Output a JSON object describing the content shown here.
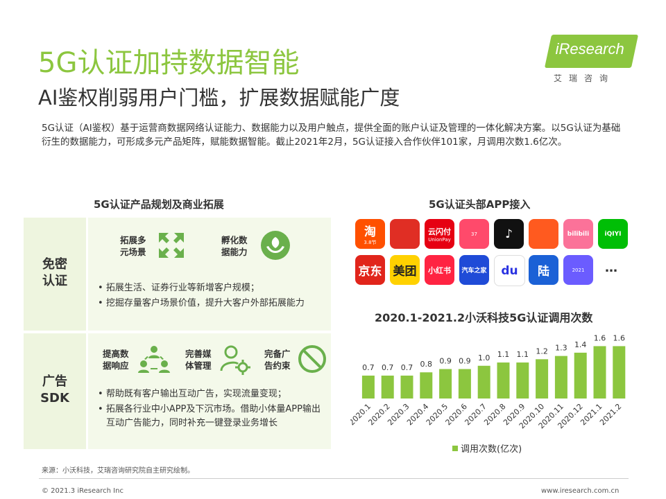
{
  "title": "5G认证加持数据智能",
  "subtitle": "AI鉴权削弱用户门槛，扩展数据赋能广度",
  "logo": {
    "brand": "iResearch",
    "cn": "艾瑞咨询"
  },
  "description": "5G认证（AI鉴权）基于运营商数据网络认证能力、数据能力以及用户触点，提供全面的账户认证及管理的一体化解决方案。以5G认证为基础衍生的数据能力，可形成多元产品矩阵，赋能数据智能。截止2021年2月，5G认证接入合作伙伴101家，月调用次数1.6亿次。",
  "left_section": {
    "title": "5G认证产品规划及商业拓展",
    "rows": [
      {
        "label": "免密\n认证",
        "features": [
          {
            "text": "拓展多\n元场景",
            "icon": "expand-arrows-icon"
          },
          {
            "text": "孵化数\n据能力",
            "icon": "sprout-hand-icon"
          }
        ],
        "bullets": [
          "拓展生活、证券行业等新增客户规模；",
          "挖掘存量客户场景价值，提升大客户外部拓展能力"
        ]
      },
      {
        "label": "广告\nSDK",
        "features": [
          {
            "text": "提高数\n据响应",
            "icon": "team-network-icon"
          },
          {
            "text": "完善媒\n体管理",
            "icon": "user-gear-icon"
          },
          {
            "text": "完备广\n告约束",
            "icon": "prohibit-icon"
          }
        ],
        "bullets": [
          "帮助既有客户输出互动广告，实现流量变现；",
          "拓展各行业中小APP及下沉市场。借助小体量APP输出互动广告能力，同时补充一键登录业务增长"
        ]
      }
    ]
  },
  "right_section": {
    "title": "5G认证头部APP接入",
    "apps": [
      {
        "name": "taobao-app-icon",
        "label": "淘",
        "sub": "3.8节",
        "bg": "#ff5000",
        "fg": "#ffffff"
      },
      {
        "name": "pinduoduo-app-icon",
        "label": "",
        "sub": "",
        "bg": "#e02e24",
        "fg": "#ffffff"
      },
      {
        "name": "yunshanfu-app-icon",
        "label": "云闪付",
        "sub": "UnionPay",
        "bg": "#e60012",
        "fg": "#ffffff"
      },
      {
        "name": "mushroom-app-icon",
        "label": "",
        "sub": "37",
        "bg": "#ff4a6b",
        "fg": "#ffffff"
      },
      {
        "name": "douyin-app-icon",
        "label": "♪",
        "sub": "",
        "bg": "#111111",
        "fg": "#ffffff"
      },
      {
        "name": "kuaishou-app-icon",
        "label": "",
        "sub": "",
        "bg": "#ff5a1f",
        "fg": "#ffffff"
      },
      {
        "name": "bilibili-app-icon",
        "label": "bilibili",
        "sub": "",
        "bg": "#fb7299",
        "fg": "#ffffff"
      },
      {
        "name": "iqiyi-app-icon",
        "label": "iQIYI",
        "sub": "",
        "bg": "#00be06",
        "fg": "#ffffff"
      },
      {
        "name": "jd-app-icon",
        "label": "京东",
        "sub": "",
        "bg": "#e1251b",
        "fg": "#ffffff"
      },
      {
        "name": "meituan-app-icon",
        "label": "美团",
        "sub": "",
        "bg": "#ffd100",
        "fg": "#222222"
      },
      {
        "name": "xiaohongshu-app-icon",
        "label": "小红书",
        "sub": "",
        "bg": "#ff2442",
        "fg": "#ffffff"
      },
      {
        "name": "autohome-app-icon",
        "label": "汽车之家",
        "sub": "",
        "bg": "#1f4bd7",
        "fg": "#ffffff"
      },
      {
        "name": "baidu-app-icon",
        "label": "du",
        "sub": "",
        "bg": "#ffffff",
        "fg": "#2932e1"
      },
      {
        "name": "lufax-app-icon",
        "label": "陆",
        "sub": "",
        "bg": "#1b61d6",
        "fg": "#ffffff"
      },
      {
        "name": "soul-app-icon",
        "label": "",
        "sub": "2021",
        "bg": "#6b5cff",
        "fg": "#ffffff"
      }
    ],
    "more": "…"
  },
  "chart_data": {
    "type": "bar",
    "title": "2020.1-2021.2小沃科技5G认证调用次数",
    "categories": [
      "2020.1",
      "2020.2",
      "2020.3",
      "2020.4",
      "2020.5",
      "2020.6",
      "2020.7",
      "2020.8",
      "2020.9",
      "2020.10",
      "2020.11",
      "2020.12",
      "2021.1",
      "2021.2"
    ],
    "series": [
      {
        "name": "调用次数(亿次)",
        "values": [
          0.7,
          0.7,
          0.7,
          0.8,
          0.9,
          0.9,
          1.0,
          1.1,
          1.1,
          1.2,
          1.3,
          1.4,
          1.6,
          1.6
        ]
      }
    ],
    "value_labels": [
      "0.7",
      "0.7",
      "0.7",
      "0.8",
      "0.9",
      "0.9",
      "1.0",
      "1.1",
      "1.1",
      "1.2",
      "1.3",
      "1.4",
      "1.6",
      "1.6"
    ],
    "ylim": [
      0,
      1.8
    ],
    "legend": "bottom",
    "grid": false,
    "bar_color": "#8cc63f"
  },
  "footer": {
    "source": "来源：小沃科技，艾瑞咨询研究院自主研究绘制。",
    "copyright": "© 2021.3 iResearch Inc",
    "site": "www.iresearch.com.cn"
  }
}
